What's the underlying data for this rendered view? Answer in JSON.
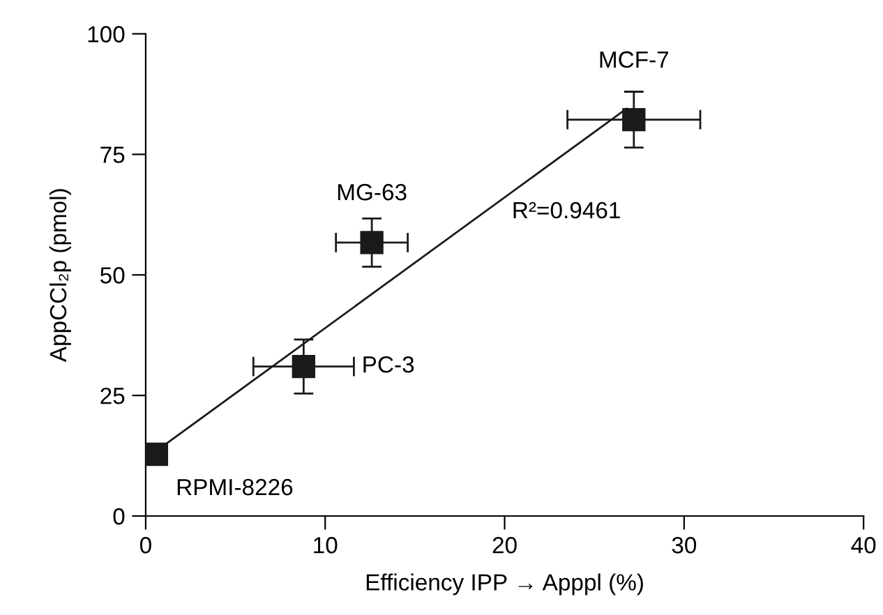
{
  "chart_data": {
    "type": "scatter",
    "xlabel": "Efficiency IPP → Apppl (%)",
    "ylabel": "AppCCl₂p (pmol)",
    "xlim": [
      0,
      40
    ],
    "xticks": [
      0,
      10,
      20,
      30,
      40
    ],
    "ylim": [
      0,
      100
    ],
    "yticks": [
      0,
      25,
      50,
      75,
      100
    ],
    "grid": false,
    "legend": false,
    "marker": "square",
    "series": [
      {
        "color": "#1a1a1a",
        "x": [
          0.6,
          8.8,
          12.6,
          27.2
        ],
        "values": [
          12.8,
          31.0,
          56.7,
          82.2
        ],
        "errors": [
          1.5,
          5.6,
          5.0,
          5.8
        ],
        "xerrors": [
          0.5,
          2.8,
          2.0,
          3.7
        ]
      },
      {
        "type": "line",
        "color": "#1a1a1a",
        "x": [
          0.6,
          26.8
        ],
        "values": [
          13.5,
          84.5
        ],
        "marker": "none",
        "line_style": "solid"
      }
    ],
    "annotations": [
      {
        "text": "RPMI-8226",
        "x": 0.6,
        "y": 12.8
      },
      {
        "text": "PC-3",
        "x": 8.8,
        "y": 31.0
      },
      {
        "text": "MG-63",
        "x": 12.6,
        "y": 56.7
      },
      {
        "text": "MCF-7",
        "x": 27.2,
        "y": 82.2
      },
      "R²=0.9461"
    ]
  }
}
